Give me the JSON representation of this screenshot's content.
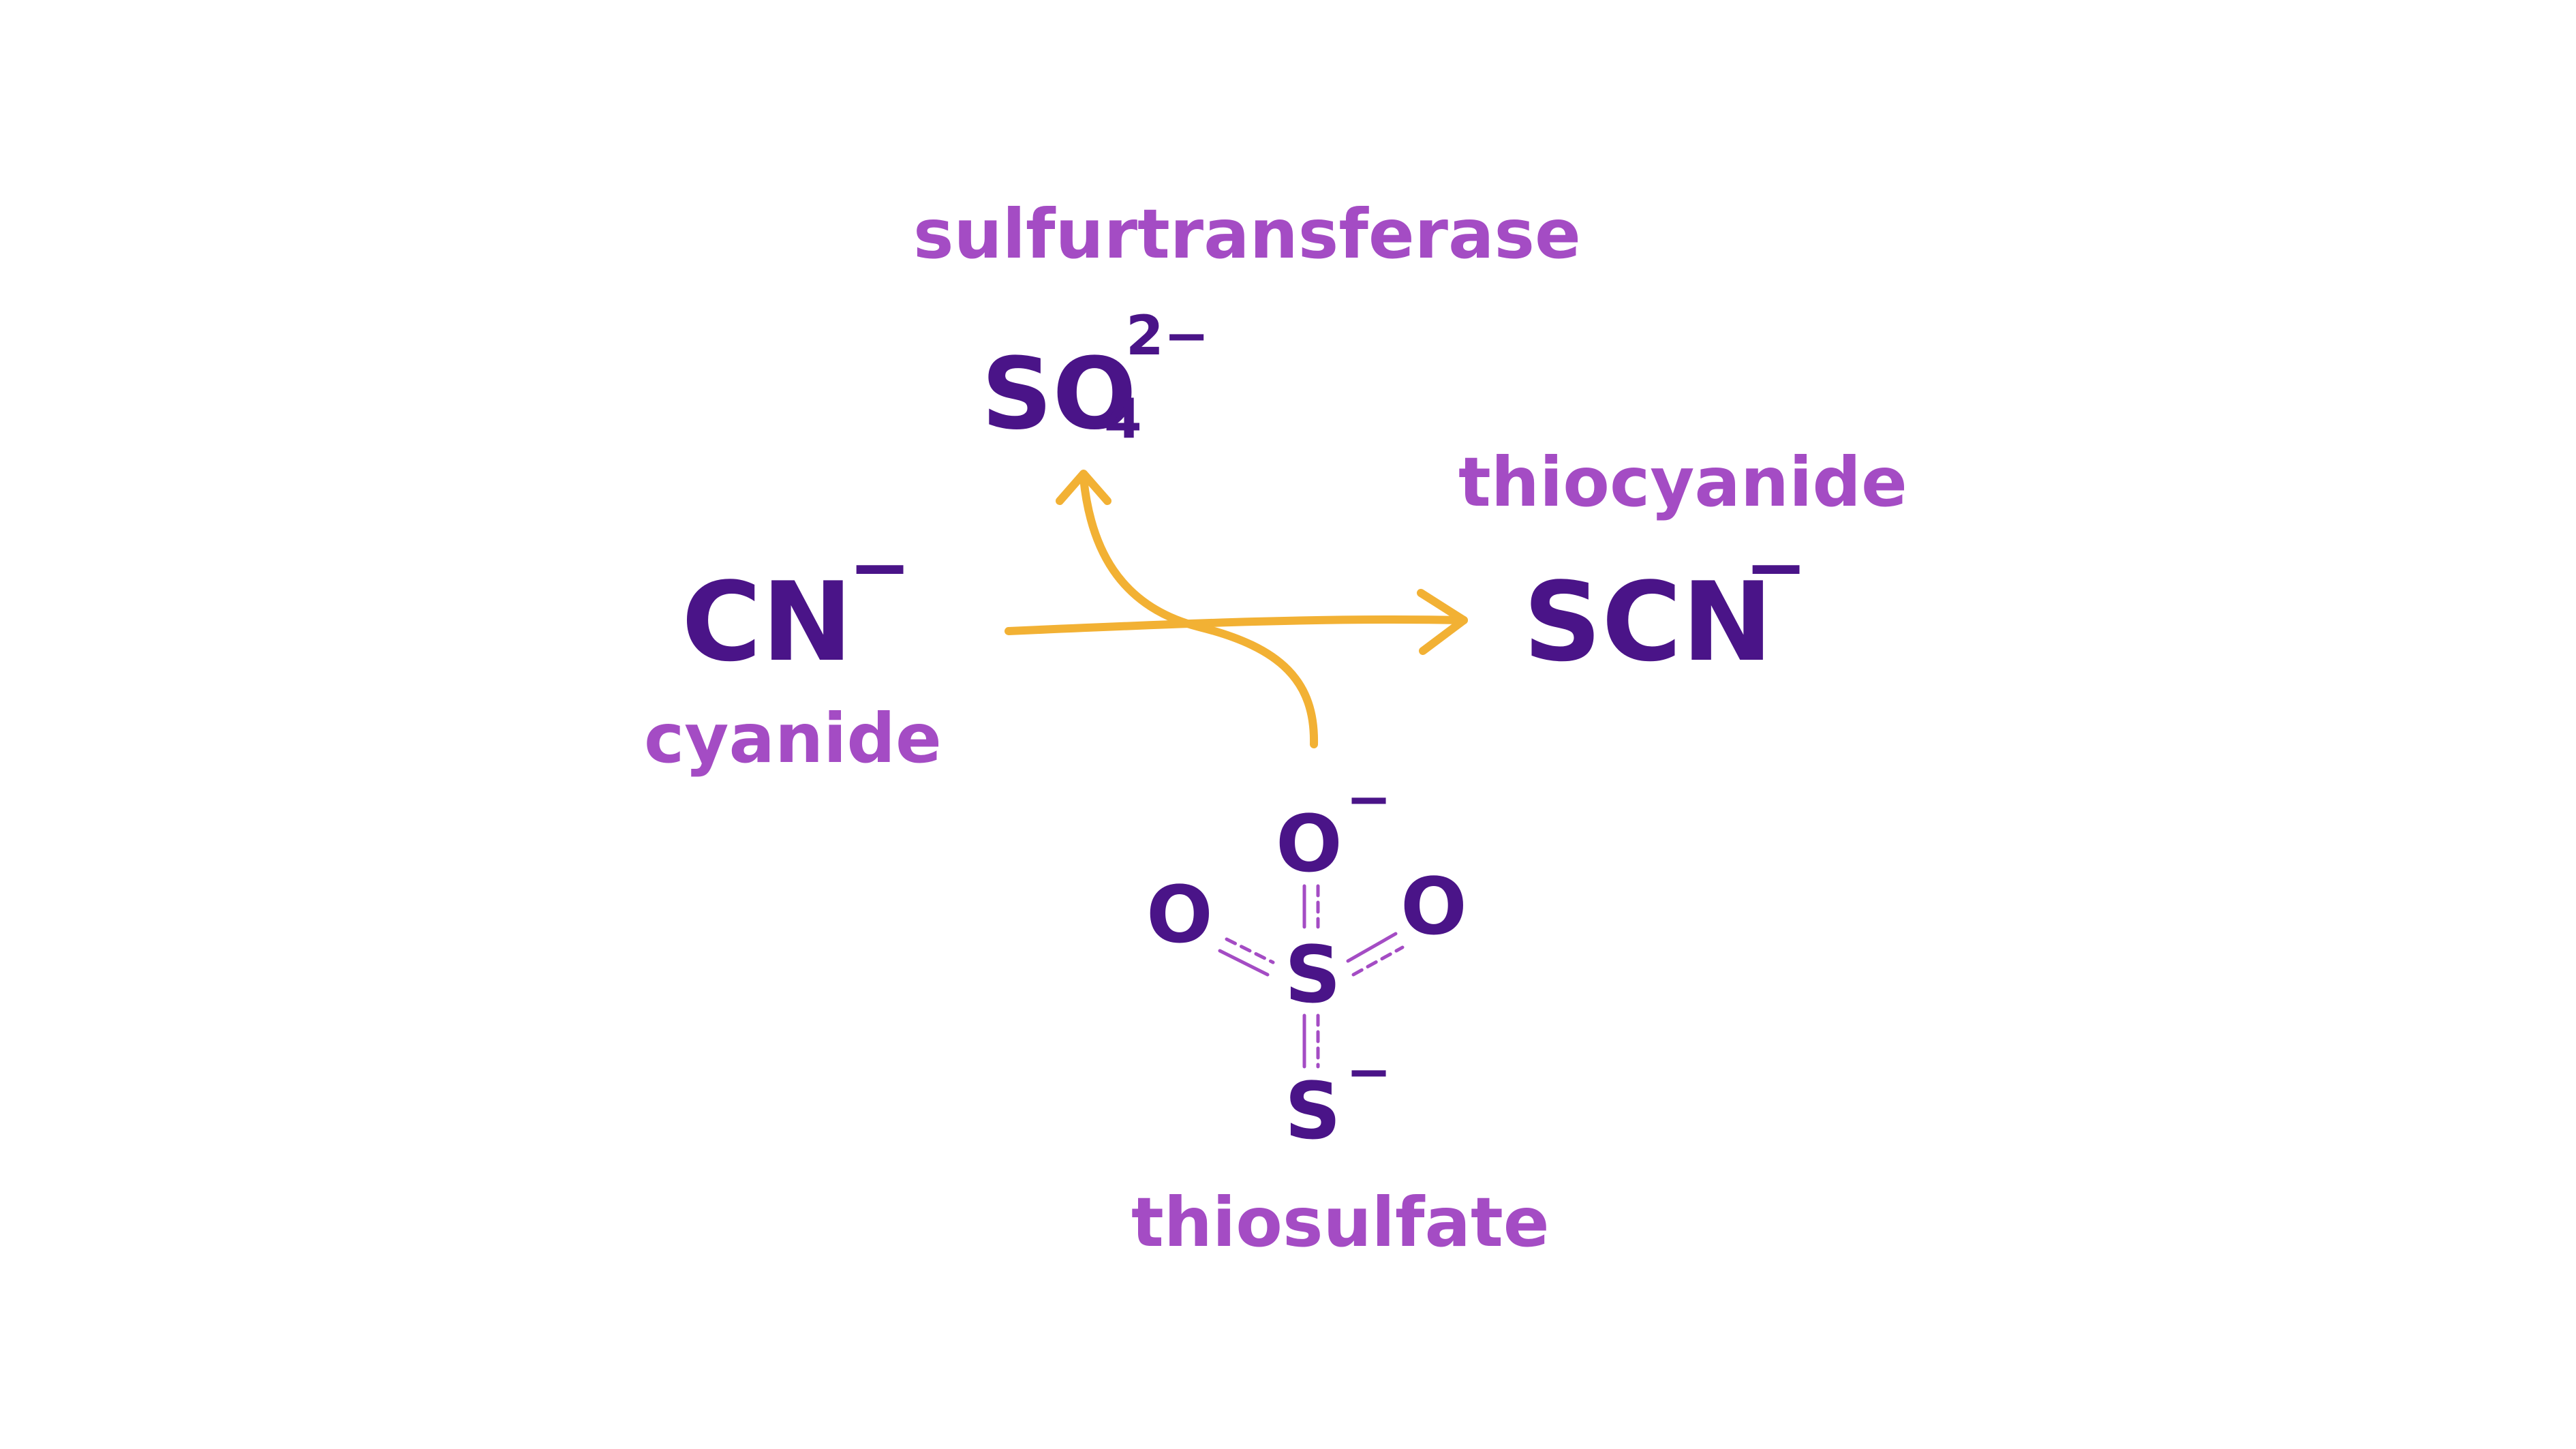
{
  "diagram": {
    "reactant": {
      "formula": "CN",
      "charge": "−",
      "name": "cyanide"
    },
    "product": {
      "formula": "SCN",
      "charge": "−",
      "name": "thiocyanide"
    },
    "enzyme": "sulfurtransferase",
    "byproduct": {
      "formula_main": "SO",
      "subscript": "4",
      "charge": "2−"
    },
    "donor": {
      "name": "thiosulfate",
      "atoms": {
        "top_oxygen": "O",
        "top_oxygen_charge": "−",
        "left_oxygen": "O",
        "right_oxygen": "O",
        "central_sulfur": "S",
        "bottom_sulfur": "S",
        "bottom_sulfur_charge": "−"
      }
    },
    "colors": {
      "formula": "#4a1488",
      "label": "#a44cc4",
      "arrow": "#f2b134",
      "background": "#ffffff"
    }
  }
}
